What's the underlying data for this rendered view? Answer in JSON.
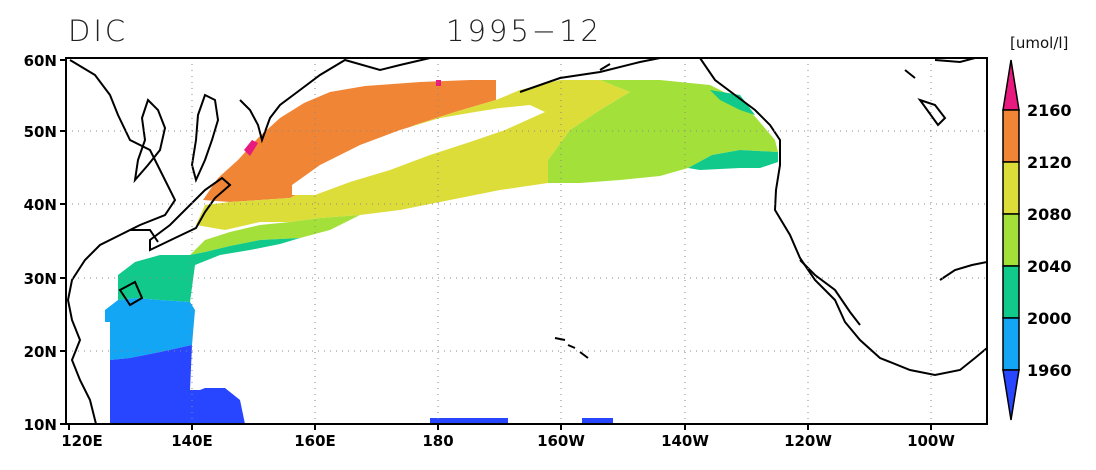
{
  "title": {
    "variable": "DIC",
    "period": "1995−12"
  },
  "units": "[umol/l]",
  "map": {
    "lon_ticks": [
      "120E",
      "140E",
      "160E",
      "180",
      "160W",
      "140W",
      "120W",
      "100W"
    ],
    "lat_ticks": [
      "60N",
      "50N",
      "40N",
      "30N",
      "20N",
      "10N"
    ],
    "grid": "dotted",
    "region": "North Pacific"
  },
  "colorbar": {
    "labels": [
      "2160",
      "2120",
      "2080",
      "2040",
      "2000",
      "1960"
    ],
    "colors": {
      "above_2160": "#e8197f",
      "2120_2160": "#f08536",
      "2080_2120": "#dddd3a",
      "2040_2080": "#a4e03a",
      "2000_2040": "#10c98a",
      "1960_2000": "#12a6f5",
      "below_1960": "#2845ff"
    }
  }
}
